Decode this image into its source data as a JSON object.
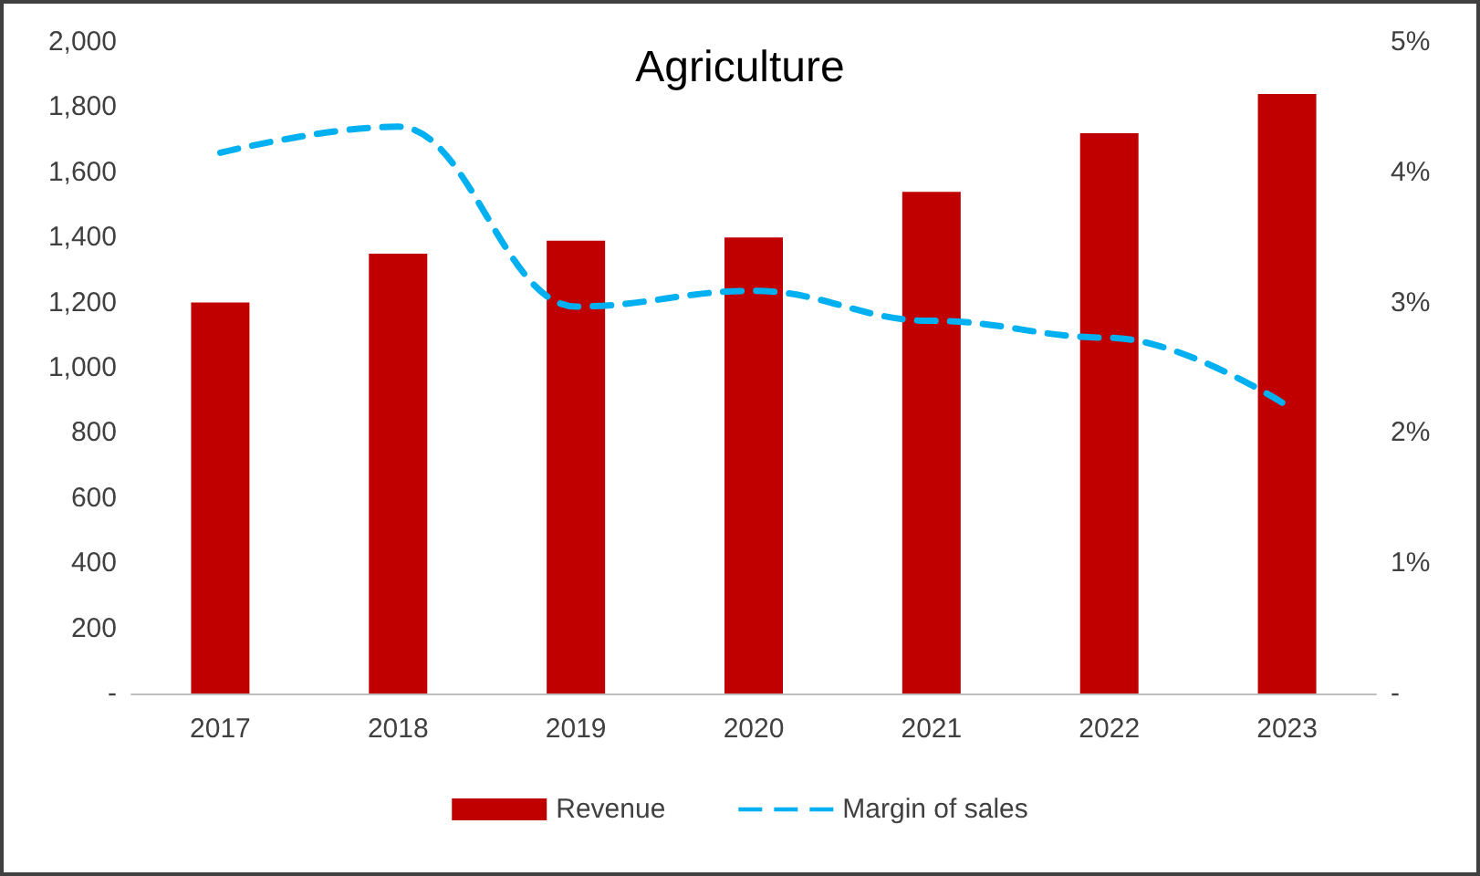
{
  "chart_data": {
    "type": "bar",
    "title": "Agriculture",
    "categories": [
      "2017",
      "2018",
      "2019",
      "2020",
      "2021",
      "2022",
      "2023"
    ],
    "series": [
      {
        "name": "Revenue",
        "color": "#c00000",
        "values": [
          1200,
          1350,
          1390,
          1400,
          1540,
          1720,
          1840
        ]
      },
      {
        "name": "Margin of sales",
        "type": "line",
        "axis": "y2",
        "color": "#00b0f0",
        "line_style": "dashed",
        "marker": "none",
        "values": [
          4.15,
          4.35,
          2.97,
          3.09,
          2.86,
          2.73,
          2.21
        ]
      }
    ],
    "ylim": [
      0,
      2000
    ],
    "yticks": [
      {
        "value": 0,
        "label": "-"
      },
      200,
      400,
      600,
      800,
      {
        "value": 1000,
        "label": "1,000"
      },
      {
        "value": 1200,
        "label": "1,200"
      },
      {
        "value": 1400,
        "label": "1,400"
      },
      {
        "value": 1600,
        "label": "1,600"
      },
      {
        "value": 1800,
        "label": "1,800"
      },
      {
        "value": 2000,
        "label": "2,000"
      }
    ],
    "y2lim": [
      0,
      5
    ],
    "y2ticks": [
      {
        "value": 0,
        "label": "-"
      },
      {
        "value": 1,
        "label": "1%"
      },
      {
        "value": 2,
        "label": "2%"
      },
      {
        "value": 3,
        "label": "3%"
      },
      {
        "value": 4,
        "label": "4%"
      },
      {
        "value": 5,
        "label": "5%"
      }
    ],
    "grid": false,
    "legend": "bottom"
  }
}
